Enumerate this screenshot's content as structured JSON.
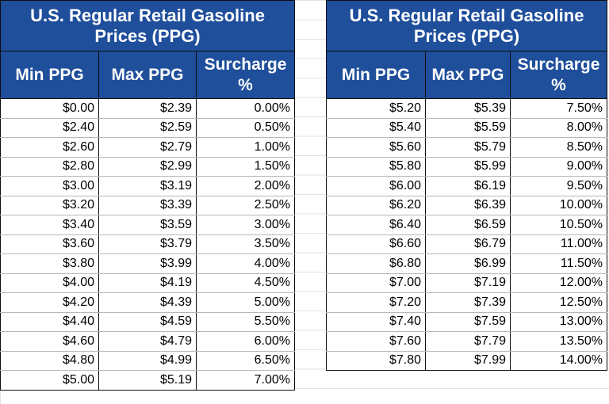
{
  "tables": [
    {
      "title": "U.S. Regular Retail Gasoline Prices (PPG)",
      "headers": [
        "Min PPG",
        "Max PPG",
        "Surcharge %"
      ],
      "rows": [
        [
          "$0.00",
          "$2.39",
          "0.00%"
        ],
        [
          "$2.40",
          "$2.59",
          "0.50%"
        ],
        [
          "$2.60",
          "$2.79",
          "1.00%"
        ],
        [
          "$2.80",
          "$2.99",
          "1.50%"
        ],
        [
          "$3.00",
          "$3.19",
          "2.00%"
        ],
        [
          "$3.20",
          "$3.39",
          "2.50%"
        ],
        [
          "$3.40",
          "$3.59",
          "3.00%"
        ],
        [
          "$3.60",
          "$3.79",
          "3.50%"
        ],
        [
          "$3.80",
          "$3.99",
          "4.00%"
        ],
        [
          "$4.00",
          "$4.19",
          "4.50%"
        ],
        [
          "$4.20",
          "$4.39",
          "5.00%"
        ],
        [
          "$4.40",
          "$4.59",
          "5.50%"
        ],
        [
          "$4.60",
          "$4.79",
          "6.00%"
        ],
        [
          "$4.80",
          "$4.99",
          "6.50%"
        ],
        [
          "$5.00",
          "$5.19",
          "7.00%"
        ]
      ]
    },
    {
      "title": "U.S. Regular Retail Gasoline Prices (PPG)",
      "headers": [
        "Min PPG",
        "Max PPG",
        "Surcharge %"
      ],
      "rows": [
        [
          "$5.20",
          "$5.39",
          "7.50%"
        ],
        [
          "$5.40",
          "$5.59",
          "8.00%"
        ],
        [
          "$5.60",
          "$5.79",
          "8.50%"
        ],
        [
          "$5.80",
          "$5.99",
          "9.00%"
        ],
        [
          "$6.00",
          "$6.19",
          "9.50%"
        ],
        [
          "$6.20",
          "$6.39",
          "10.00%"
        ],
        [
          "$6.40",
          "$6.59",
          "10.50%"
        ],
        [
          "$6.60",
          "$6.79",
          "11.00%"
        ],
        [
          "$6.80",
          "$6.99",
          "11.50%"
        ],
        [
          "$7.00",
          "$7.19",
          "12.00%"
        ],
        [
          "$7.20",
          "$7.39",
          "12.50%"
        ],
        [
          "$7.40",
          "$7.59",
          "13.00%"
        ],
        [
          "$7.60",
          "$7.79",
          "13.50%"
        ],
        [
          "$7.80",
          "$7.99",
          "14.00%"
        ]
      ]
    }
  ],
  "colors": {
    "header_bg": "#1f4e9b",
    "header_text": "#ffffff",
    "border": "#0d0d0d"
  }
}
